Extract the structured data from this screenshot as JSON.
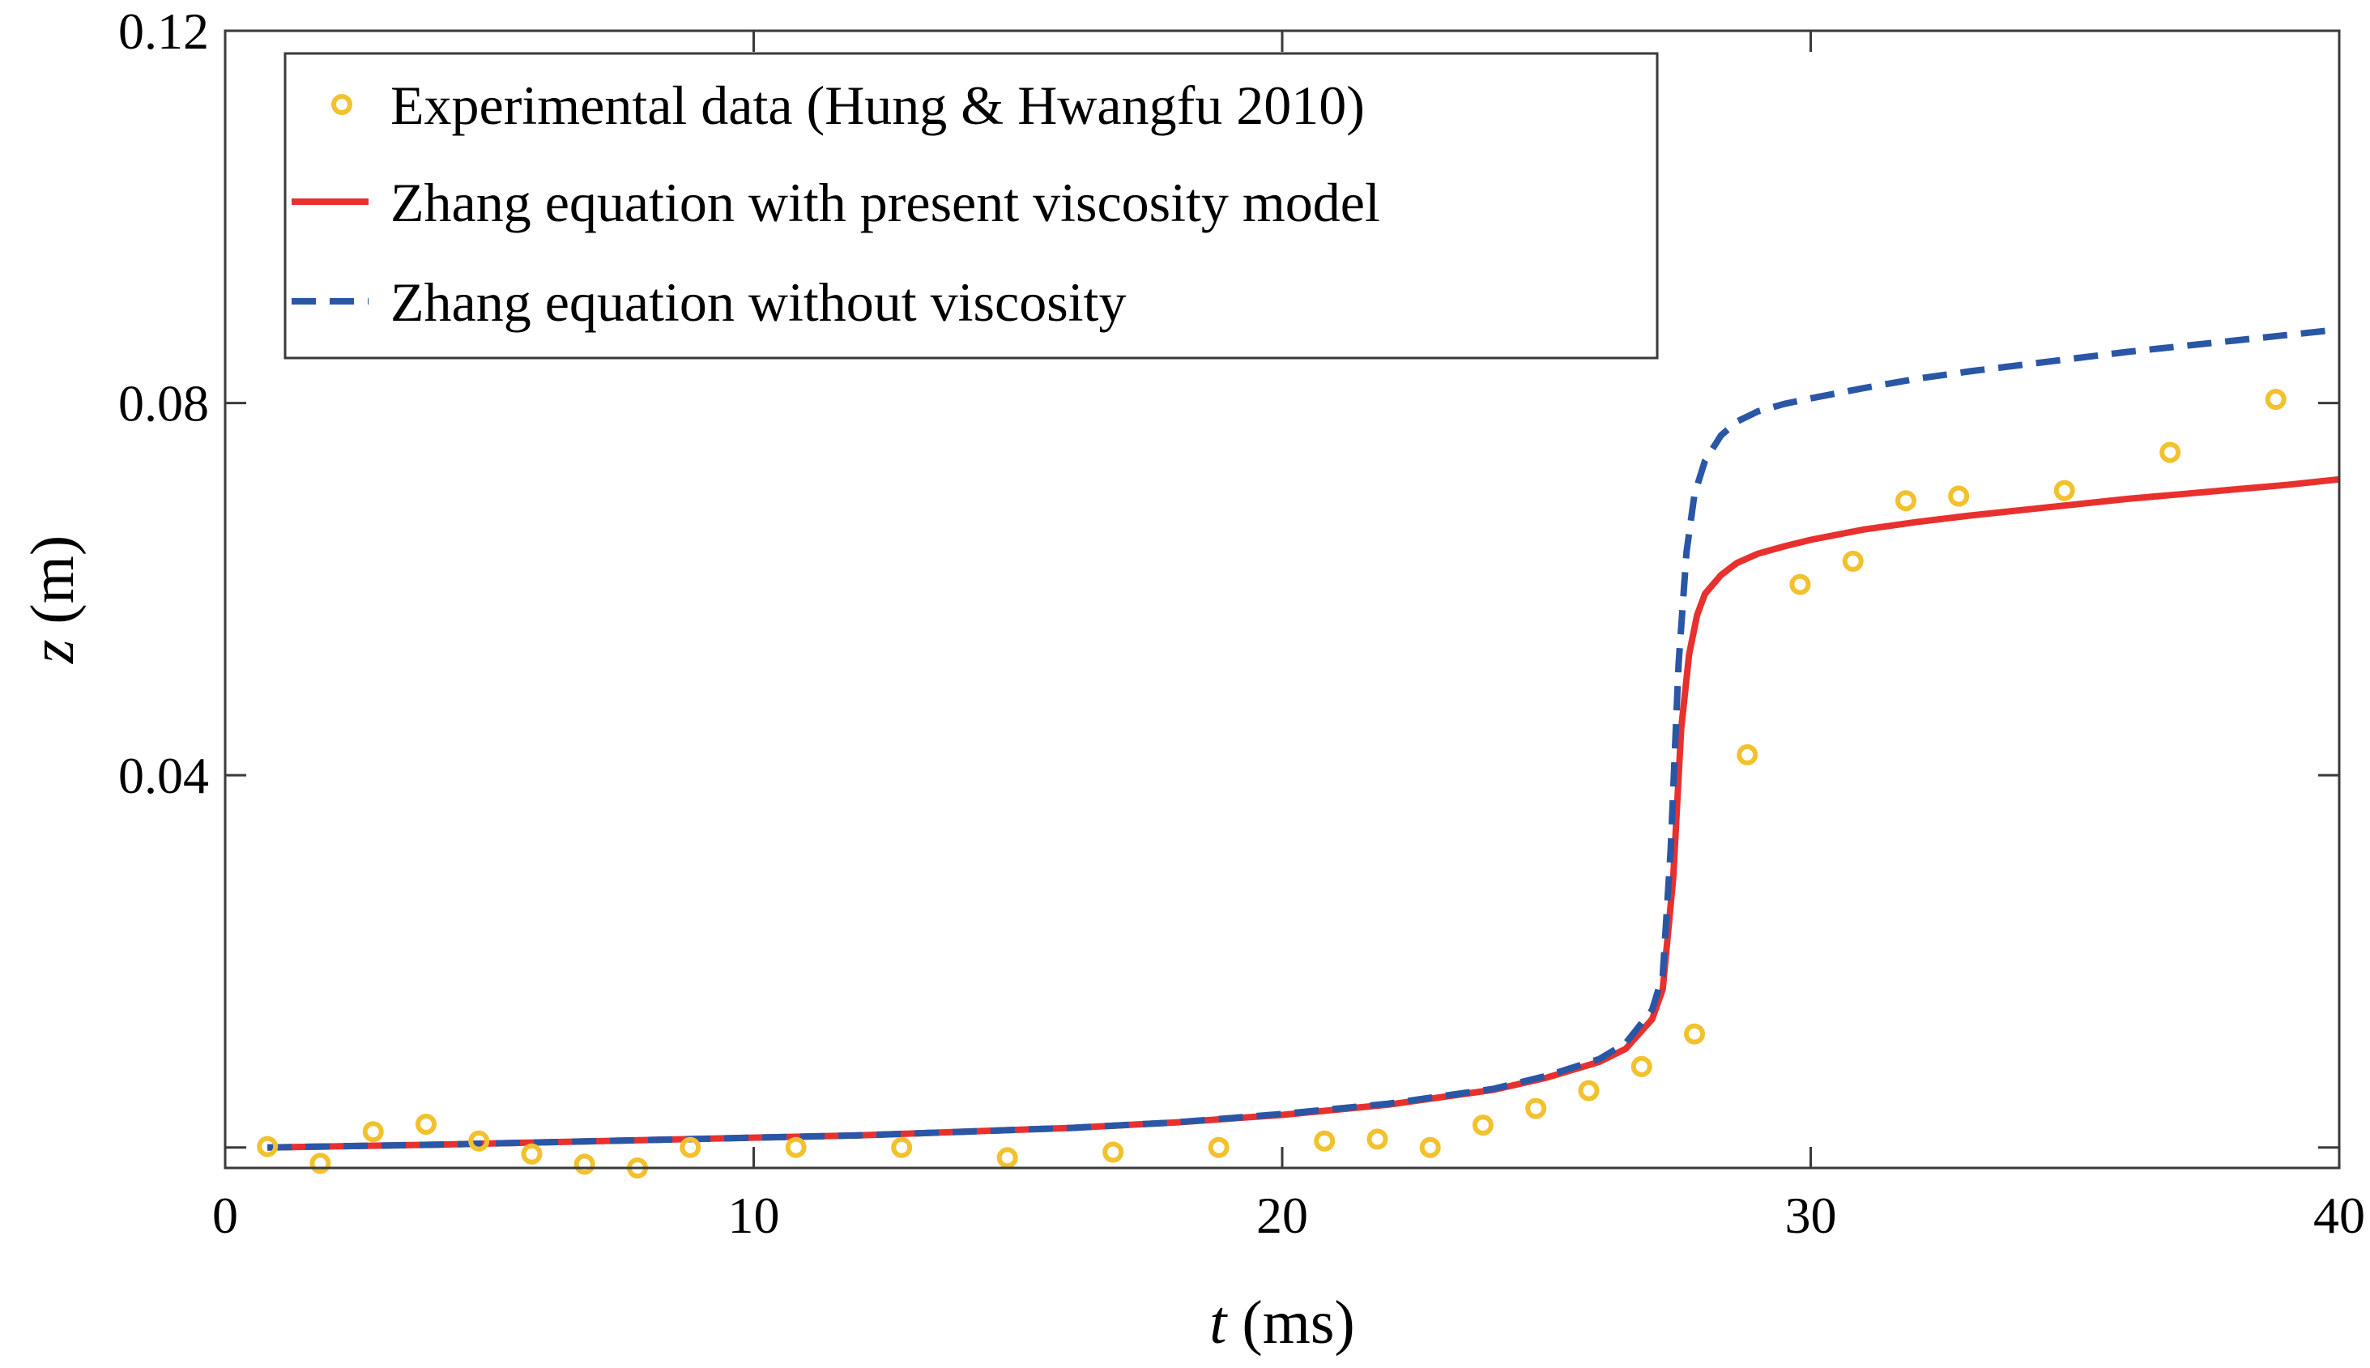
{
  "chart_data": {
    "type": "line",
    "xlabel": {
      "italic": "t",
      "rest": " (ms)"
    },
    "ylabel": {
      "italic": "z",
      "rest": " (m)"
    },
    "xlim": [
      0,
      40
    ],
    "ylim": [
      -0.0022,
      0.12
    ],
    "xticks": [
      0,
      10,
      20,
      30,
      40
    ],
    "xtick_labels": [
      "0",
      "10",
      "20",
      "30",
      "40"
    ],
    "yticks": [
      0.04,
      0.08,
      0.12
    ],
    "ytick_labels": [
      "0.04",
      "0.08",
      "0.12"
    ],
    "grid": false,
    "legend_position": "top-left",
    "series": [
      {
        "name": "Experimental data (Hung & Hwangfu 2010)",
        "kind": "scatter",
        "color": "#F2C12E",
        "x": [
          0.8,
          1.8,
          2.8,
          3.8,
          4.8,
          5.8,
          6.8,
          7.8,
          8.8,
          10.8,
          12.8,
          14.8,
          16.8,
          18.8,
          20.8,
          21.8,
          22.8,
          23.8,
          24.8,
          25.8,
          26.8,
          27.8,
          28.8,
          29.8,
          30.8,
          31.8,
          32.8,
          34.8,
          36.8,
          38.8
        ],
        "y": [
          0.0001,
          -0.0017,
          0.0017,
          0.0025,
          0.0007,
          -0.0007,
          -0.0018,
          -0.0022,
          0.0,
          0.0,
          0.0,
          -0.0011,
          -0.0005,
          0.0,
          0.0007,
          0.0009,
          0.0,
          0.0024,
          0.0042,
          0.0061,
          0.0087,
          0.0122,
          0.0422,
          0.0605,
          0.063,
          0.0695,
          0.07,
          0.0706,
          0.0747,
          0.0804
        ]
      },
      {
        "name": "Zhang equation with present viscosity model",
        "kind": "line",
        "color": "#E8312F",
        "dash": "solid",
        "x": [
          0.8,
          4,
          8,
          12,
          16,
          18,
          20,
          22,
          24,
          25,
          26,
          26.5,
          27.0,
          27.2,
          27.4,
          27.55,
          27.7,
          27.85,
          28.0,
          28.3,
          28.6,
          29,
          29.5,
          30,
          31,
          32,
          33,
          34,
          35,
          36,
          37,
          38,
          39,
          40
        ],
        "y": [
          0.0,
          0.0003,
          0.0008,
          0.0013,
          0.0021,
          0.0027,
          0.0035,
          0.0046,
          0.0062,
          0.0075,
          0.0092,
          0.0106,
          0.0138,
          0.017,
          0.029,
          0.045,
          0.053,
          0.0572,
          0.0595,
          0.0615,
          0.0628,
          0.0638,
          0.0646,
          0.0653,
          0.0664,
          0.0672,
          0.0679,
          0.0685,
          0.0691,
          0.0697,
          0.0702,
          0.0707,
          0.0712,
          0.0718
        ]
      },
      {
        "name": "Zhang equation without viscosity",
        "kind": "line",
        "color": "#2A56A6",
        "dash": "dashed",
        "x": [
          0.8,
          4,
          8,
          12,
          16,
          18,
          20,
          22,
          24,
          25,
          26,
          26.5,
          27.0,
          27.2,
          27.35,
          27.5,
          27.65,
          27.8,
          28.0,
          28.3,
          28.6,
          29,
          29.5,
          30,
          31,
          32,
          33,
          34,
          35,
          36,
          37,
          38,
          39,
          40
        ],
        "y": [
          0.0,
          0.0003,
          0.0008,
          0.0013,
          0.0021,
          0.0027,
          0.0036,
          0.0047,
          0.0063,
          0.0077,
          0.0095,
          0.0112,
          0.0148,
          0.0185,
          0.032,
          0.052,
          0.064,
          0.0702,
          0.0738,
          0.0765,
          0.078,
          0.0791,
          0.0799,
          0.0805,
          0.0816,
          0.0826,
          0.0834,
          0.0841,
          0.0848,
          0.0855,
          0.0861,
          0.0867,
          0.0873,
          0.0879
        ]
      }
    ]
  }
}
